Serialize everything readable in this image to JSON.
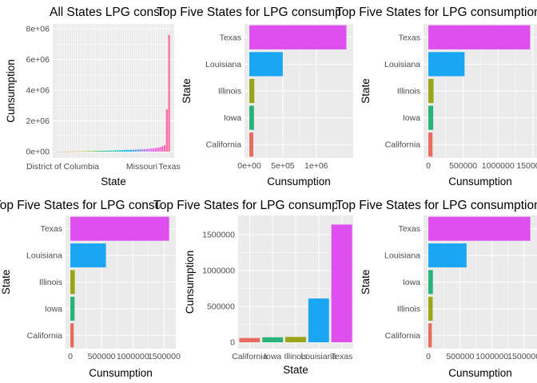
{
  "colors": {
    "panel": "#ebebeb",
    "grid_major": "#ffffff",
    "California": "#f8766d",
    "Iowa": "#a3a500",
    "Illinois": "#a3a500",
    "Louisiana": "#00b0f6",
    "Texas": "#e76bf3",
    "CaliforniaB": "#e86b60",
    "IowaB": "#2ab27b",
    "Illinois2": "#9aa51a",
    "Louisiana2": "#1aa6f2",
    "Texas2": "#df4ff0"
  },
  "chart_data": [
    {
      "type": "bar",
      "title": "All States LPG consumption",
      "xlabel": "State",
      "ylabel": "Cunsumption",
      "x_ticks": [
        "District of Columbia",
        "Missouri",
        "Texas"
      ],
      "y_ticks": [
        "0e+00",
        "2e+06",
        "4e+06",
        "6e+06",
        "8e+06"
      ],
      "y_tick_values": [
        0,
        2000000,
        4000000,
        6000000,
        8000000
      ],
      "ylim": [
        0,
        8000000
      ],
      "n_categories": 51,
      "values": [
        0,
        2000,
        4000,
        6000,
        8000,
        10000,
        12000,
        14000,
        16000,
        18000,
        20000,
        22000,
        25000,
        28000,
        31000,
        34000,
        37000,
        40000,
        43000,
        46000,
        50000,
        54000,
        58000,
        62000,
        66000,
        70000,
        75000,
        80000,
        85000,
        90000,
        96000,
        102000,
        108000,
        115000,
        122000,
        130000,
        138000,
        146000,
        155000,
        165000,
        175000,
        186000,
        198000,
        212000,
        230000,
        255000,
        290000,
        340000,
        420000,
        2750000,
        7600000
      ]
    },
    {
      "type": "bar",
      "orientation": "horizontal",
      "title": "Top Five States for LPG consumption",
      "xlabel": "Cunsumption",
      "ylabel": "State",
      "categories": [
        "California",
        "Iowa",
        "Illinois",
        "Louisiana",
        "Texas"
      ],
      "values": [
        60000,
        70000,
        75000,
        500000,
        1450000
      ],
      "x_ticks": [
        "0e+00",
        "5e+05",
        "1e+06"
      ],
      "x_tick_values": [
        0,
        500000,
        1000000
      ],
      "xlim": [
        0,
        1480000
      ]
    },
    {
      "type": "bar",
      "orientation": "horizontal",
      "title": "Top Five States for LPG consumption",
      "xlabel": "Cunsumption",
      "ylabel": "State",
      "categories": [
        "California",
        "Iowa",
        "Illinois",
        "Louisiana",
        "Texas"
      ],
      "values": [
        60000,
        70000,
        75000,
        520000,
        1460000
      ],
      "x_ticks": [
        "0",
        "500000",
        "1000000",
        "1500000"
      ],
      "x_tick_values": [
        0,
        500000,
        1000000,
        1500000
      ],
      "xlim": [
        0,
        1490000
      ]
    },
    {
      "type": "bar",
      "orientation": "horizontal",
      "title": "Top Five States for LPG consumption",
      "xlabel": "Cunsumption",
      "ylabel": "State",
      "categories": [
        "California",
        "Iowa",
        "Illinois",
        "Louisiana",
        "Texas"
      ],
      "values": [
        55000,
        68000,
        72000,
        570000,
        1580000
      ],
      "x_ticks": [
        "0",
        "500000",
        "1000000",
        "1500000"
      ],
      "x_tick_values": [
        0,
        500000,
        1000000,
        1500000
      ],
      "xlim": [
        0,
        1610000
      ]
    },
    {
      "type": "bar",
      "orientation": "vertical",
      "title": "Top Five States for LPG consumption",
      "xlabel": "State",
      "ylabel": "Cunsumption",
      "categories": [
        "California",
        "Iowa",
        "Illinois",
        "Louisiana",
        "Texas"
      ],
      "values": [
        60000,
        70000,
        75000,
        610000,
        1640000
      ],
      "y_ticks": [
        "0",
        "500000",
        "1000000",
        "1500000"
      ],
      "y_tick_values": [
        0,
        500000,
        1000000,
        1500000
      ],
      "ylim": [
        0,
        1700000
      ]
    },
    {
      "type": "bar",
      "orientation": "horizontal",
      "title": "Top Five States for LPG consumption",
      "xlabel": "Cunsumption",
      "ylabel": "State",
      "categories": [
        "California",
        "Illinois",
        "Iowa",
        "Louisiana",
        "Texas"
      ],
      "values": [
        55000,
        68000,
        72000,
        600000,
        1600000
      ],
      "x_ticks": [
        "0",
        "500000",
        "1000000",
        "1500000"
      ],
      "x_tick_values": [
        0,
        500000,
        1000000,
        1500000
      ],
      "xlim": [
        0,
        1630000
      ]
    }
  ]
}
